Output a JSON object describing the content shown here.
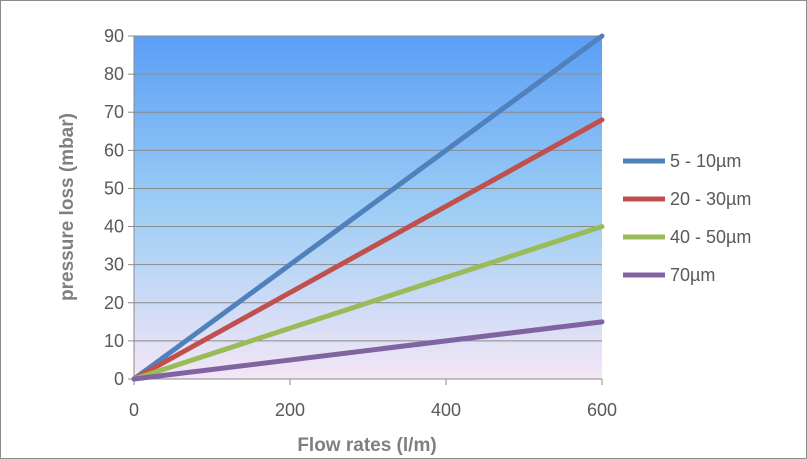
{
  "chart_data": {
    "type": "line",
    "title": "",
    "xlabel": "Flow rates  (l/m)",
    "ylabel": "pressure loss (mbar)",
    "xlim": [
      0,
      600
    ],
    "ylim": [
      0,
      90
    ],
    "x_ticks": [
      "0",
      "200",
      "400",
      "600"
    ],
    "y_ticks": [
      "0",
      "10",
      "20",
      "30",
      "40",
      "50",
      "60",
      "70",
      "80",
      "90"
    ],
    "grid": "horizontal",
    "legend_position": "right",
    "background": "gradient blue top to light lavender bottom",
    "series": [
      {
        "name": "5 - 10µm",
        "color": "#4f81bd",
        "x": [
          0,
          600
        ],
        "y": [
          0,
          90
        ]
      },
      {
        "name": "20 - 30µm",
        "color": "#c0504d",
        "x": [
          0,
          600
        ],
        "y": [
          0,
          68
        ]
      },
      {
        "name": "40 - 50µm",
        "color": "#9bbb59",
        "x": [
          0,
          600
        ],
        "y": [
          0,
          40
        ]
      },
      {
        "name": "70µm",
        "color": "#8064a2",
        "x": [
          0,
          600
        ],
        "y": [
          0,
          15
        ]
      }
    ]
  }
}
